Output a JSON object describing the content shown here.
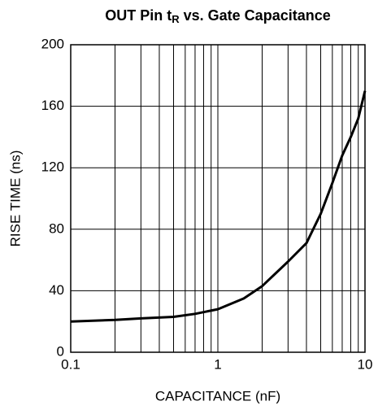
{
  "chart_data": {
    "type": "line",
    "title": [
      "OUT Pin t",
      "R",
      " vs. Gate Capacitance"
    ],
    "x_label": "CAPACITANCE (nF)",
    "y_label": "RISE TIME (ns)",
    "log_x": true,
    "x": [
      0.1,
      0.2,
      0.3,
      0.5,
      0.7,
      1,
      1.5,
      2,
      3,
      4,
      5,
      6,
      7,
      8,
      9,
      10
    ],
    "series": [
      {
        "name": "tR",
        "color": "#000000",
        "values": [
          20,
          21,
          22,
          23,
          25,
          28,
          35,
          43,
          59,
          71,
          90,
          110,
          128,
          140,
          152,
          170
        ]
      }
    ],
    "xlim": [
      0.1,
      10
    ],
    "xticks": [
      0.1,
      1,
      10
    ],
    "xgrid": [
      0.2,
      0.3,
      0.4,
      0.5,
      0.6,
      0.7,
      0.8,
      0.9,
      2,
      3,
      4,
      5,
      6,
      7,
      8,
      9
    ],
    "ylim": [
      0,
      200
    ],
    "yticks": [
      0,
      40,
      80,
      120,
      160,
      200
    ],
    "grid": true
  }
}
